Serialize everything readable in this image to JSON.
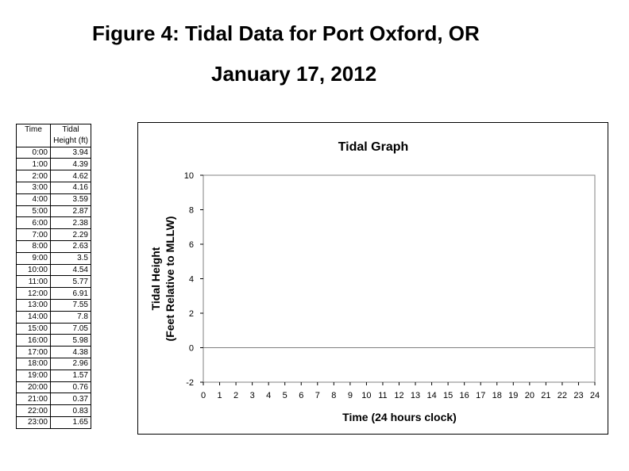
{
  "figure": {
    "title": "Figure 4: Tidal Data for Port Oxford, OR",
    "date": "January 17, 2012"
  },
  "table": {
    "header_time": "Time",
    "header_tidal": "Tidal",
    "header_height": "Height (ft)",
    "rows": [
      {
        "time": "0:00",
        "height": "3.94"
      },
      {
        "time": "1:00",
        "height": "4.39"
      },
      {
        "time": "2:00",
        "height": "4.62"
      },
      {
        "time": "3:00",
        "height": "4.16"
      },
      {
        "time": "4:00",
        "height": "3.59"
      },
      {
        "time": "5:00",
        "height": "2.87"
      },
      {
        "time": "6:00",
        "height": "2.38"
      },
      {
        "time": "7:00",
        "height": "2.29"
      },
      {
        "time": "8:00",
        "height": "2.63"
      },
      {
        "time": "9:00",
        "height": "3.5"
      },
      {
        "time": "10:00",
        "height": "4.54"
      },
      {
        "time": "11:00",
        "height": "5.77"
      },
      {
        "time": "12:00",
        "height": "6.91"
      },
      {
        "time": "13:00",
        "height": "7.55"
      },
      {
        "time": "14:00",
        "height": "7.8"
      },
      {
        "time": "15:00",
        "height": "7.05"
      },
      {
        "time": "16:00",
        "height": "5.98"
      },
      {
        "time": "17:00",
        "height": "4.38"
      },
      {
        "time": "18:00",
        "height": "2.96"
      },
      {
        "time": "19:00",
        "height": "1.57"
      },
      {
        "time": "20:00",
        "height": "0.76"
      },
      {
        "time": "21:00",
        "height": "0.37"
      },
      {
        "time": "22:00",
        "height": "0.83"
      },
      {
        "time": "23:00",
        "height": "1.65"
      }
    ]
  },
  "chart_data": {
    "type": "line",
    "title": "Tidal Graph",
    "xlabel": "Time (24 hours clock)",
    "ylabel_line1": "Tidal Height",
    "ylabel_line2": "(Feet Relative to MLLW)",
    "xlim": [
      0,
      24
    ],
    "ylim": [
      -2,
      10
    ],
    "x_ticks": [
      "0",
      "1",
      "2",
      "3",
      "4",
      "5",
      "6",
      "7",
      "8",
      "9",
      "10",
      "11",
      "12",
      "13",
      "14",
      "15",
      "16",
      "17",
      "18",
      "19",
      "20",
      "21",
      "22",
      "23",
      "24"
    ],
    "y_ticks": [
      "-2",
      "0",
      "2",
      "4",
      "6",
      "8",
      "10"
    ],
    "reference_line_y": 0,
    "grid": false,
    "series": []
  }
}
